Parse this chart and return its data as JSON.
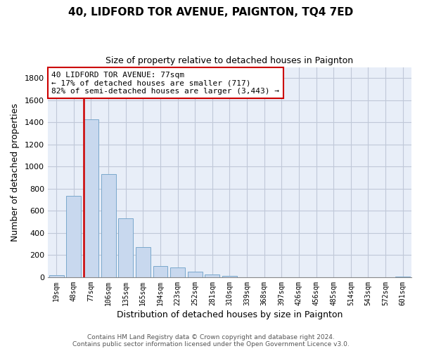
{
  "title": "40, LIDFORD TOR AVENUE, PAIGNTON, TQ4 7ED",
  "subtitle": "Size of property relative to detached houses in Paignton",
  "xlabel": "Distribution of detached houses by size in Paignton",
  "ylabel": "Number of detached properties",
  "categories": [
    "19sqm",
    "48sqm",
    "77sqm",
    "106sqm",
    "135sqm",
    "165sqm",
    "194sqm",
    "223sqm",
    "252sqm",
    "281sqm",
    "310sqm",
    "339sqm",
    "368sqm",
    "397sqm",
    "426sqm",
    "456sqm",
    "485sqm",
    "514sqm",
    "543sqm",
    "572sqm",
    "601sqm"
  ],
  "values": [
    20,
    735,
    1430,
    935,
    530,
    270,
    103,
    90,
    50,
    27,
    14,
    2,
    0,
    0,
    0,
    0,
    0,
    0,
    0,
    0,
    5
  ],
  "bar_color": "#c8d8ee",
  "bar_edge_color": "#7aa8cc",
  "highlight_bar_index": 2,
  "highlight_color": "#cc0000",
  "annotation_line1": "40 LIDFORD TOR AVENUE: 77sqm",
  "annotation_line2": "← 17% of detached houses are smaller (717)",
  "annotation_line3": "82% of semi-detached houses are larger (3,443) →",
  "annotation_box_color": "#ffffff",
  "annotation_box_edge_color": "#cc0000",
  "ylim": [
    0,
    1900
  ],
  "yticks": [
    0,
    200,
    400,
    600,
    800,
    1000,
    1200,
    1400,
    1600,
    1800
  ],
  "footer_line1": "Contains HM Land Registry data © Crown copyright and database right 2024.",
  "footer_line2": "Contains public sector information licensed under the Open Government Licence v3.0.",
  "background_color": "#ffffff",
  "plot_background_color": "#e8eef8",
  "grid_color": "#c0c8d8"
}
